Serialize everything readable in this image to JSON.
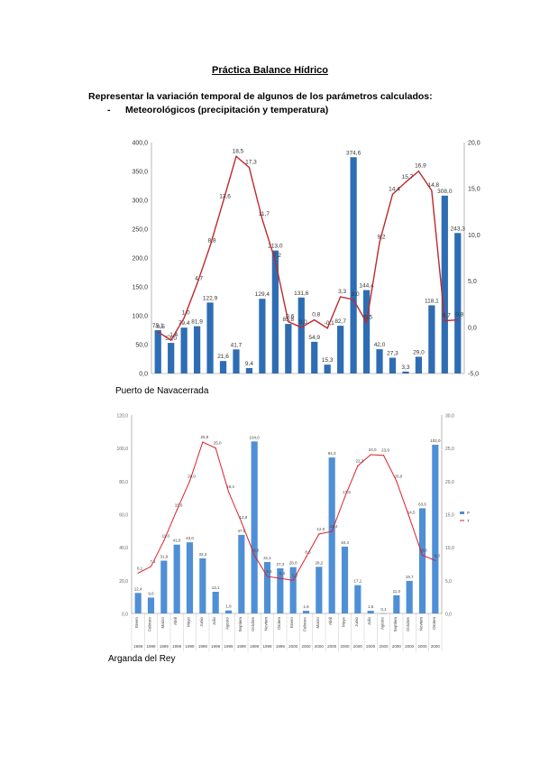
{
  "document": {
    "title": "Práctica Balance Hídrico",
    "intro": "Representar la variación temporal de algunos de los parámetros calculados:",
    "bullet_dash": "-",
    "bullet_text": "Meteorológicos (precipitación y temperatura)",
    "location_1": "Puerto de Navacerrada",
    "location_2": "Arganda del Rey"
  },
  "chart_data": [
    {
      "type": "bar",
      "title": "",
      "y_left_lim": [
        0,
        400
      ],
      "y_left_ticks": [
        "0,0",
        "50,0",
        "100,0",
        "150,0",
        "200,0",
        "250,0",
        "300,0",
        "350,0",
        "400,0"
      ],
      "y_right_lim": [
        -5,
        20
      ],
      "y_right_ticks": [
        "-5,0",
        "0,0",
        "5,0",
        "10,0",
        "15,0",
        "20,0"
      ],
      "colors": {
        "bar": "#2E6DB4",
        "line": "#C0282D"
      },
      "series": [
        {
          "name": "",
          "kind": "bar",
          "values": [
            75.1,
            53.0,
            79.4,
            81.9,
            122.9,
            21.6,
            41.7,
            9.4,
            129.4,
            213.0,
            85.8,
            131.6,
            54.9,
            15.3,
            82.7,
            374.6,
            144.4,
            42.0,
            27.3,
            3.3,
            29.0,
            118.1,
            308.0,
            243.3
          ],
          "labels": [
            "75,1",
            "53,0",
            "79,4",
            "81,9",
            "122,9",
            "21,6",
            "41,7",
            "9,4",
            "129,4",
            "213,0",
            "85,8",
            "131,6",
            "54,9",
            "15,3",
            "82,7",
            "374,6",
            "144,4",
            "42,0",
            "27,3",
            "3,3",
            "29,0",
            "118,1",
            "308,0",
            "243,3"
          ]
        },
        {
          "name": "",
          "kind": "line",
          "values": [
            -0.5,
            -1.4,
            1.0,
            4.7,
            8.8,
            13.6,
            18.5,
            17.3,
            11.7,
            7.2,
            0.6,
            0.0,
            0.8,
            -0.1,
            3.3,
            3.0,
            0.5,
            9.2,
            14.4,
            15.7,
            16.9,
            14.8,
            0.7,
            0.8
          ],
          "labels": [
            "-0,5",
            "-1,4",
            "1,0",
            "4,7",
            "8,8",
            "13,6",
            "18,5",
            "17,3",
            "11,7",
            "7,2",
            "0,6",
            "0,0",
            "0,8",
            "-0,1",
            "3,3",
            "3,0",
            "0,5",
            "9,2",
            "14,4",
            "15,7",
            "16,9",
            "14,8",
            "0,7",
            "0,8"
          ]
        }
      ]
    },
    {
      "type": "bar",
      "title": "",
      "y_left_lim": [
        0,
        120
      ],
      "y_left_ticks": [
        "0,0",
        "20,0",
        "40,0",
        "60,0",
        "80,0",
        "100,0",
        "120,0"
      ],
      "y_right_lim": [
        0,
        30
      ],
      "y_right_ticks": [
        "0,0",
        "5,0",
        "10,0",
        "15,0",
        "20,0",
        "25,0",
        "30,0"
      ],
      "categories": [
        "Enero",
        "Febrero",
        "Marzo",
        "Abril",
        "Mayo",
        "Junio",
        "Julio",
        "Agosto",
        "Septiem",
        "Octubre",
        "Noviem",
        "Diciem",
        "Enero",
        "Febrero",
        "Marzo",
        "Abril",
        "Mayo",
        "Junio",
        "Julio",
        "Agosto",
        "Septiem",
        "Octubre",
        "Noviem",
        "Diciem"
      ],
      "years": [
        "1999",
        "1999",
        "1999",
        "1999",
        "1999",
        "1999",
        "1999",
        "1999",
        "1999",
        "1999",
        "1999",
        "1999",
        "2000",
        "2000",
        "2000",
        "2000",
        "2000",
        "2000",
        "2000",
        "2000",
        "2000",
        "2000",
        "2000",
        "2000"
      ],
      "legend": {
        "position": "right",
        "entries": [
          "P",
          "T"
        ]
      },
      "colors": {
        "bar": "#4F8FD6",
        "line": "#E0202A"
      },
      "series": [
        {
          "name": "P",
          "kind": "bar",
          "values": [
            12.4,
            9.6,
            31.9,
            41.6,
            43.0,
            33.3,
            13.1,
            1.8,
            47.5,
            104.0,
            31.1,
            27.3,
            28.0,
            1.6,
            28.2,
            94.3,
            40.4,
            17.1,
            1.6,
            0.1,
            11.0,
            19.7,
            63.6,
            102.0
          ],
          "labels": [
            "12,4",
            "9,6",
            "31,9",
            "41,6",
            "43,0",
            "33,3",
            "13,1",
            "1,8",
            "47,5",
            "104,0",
            "31,1",
            "27,3",
            "28,0",
            "1,6",
            "28,2",
            "94,3",
            "40,4",
            "17,1",
            "1,6",
            "0,1",
            "11,0",
            "19,7",
            "63,6",
            "102,0"
          ]
        },
        {
          "name": "T",
          "kind": "line",
          "values": [
            6.1,
            7.1,
            11.0,
            15.6,
            20.0,
            25.9,
            25.0,
            18.4,
            13.8,
            8.8,
            5.6,
            5.3,
            5.0,
            8.5,
            12.0,
            12.4,
            17.6,
            22.3,
            24.0,
            23.9,
            20.0,
            14.5,
            8.8,
            8.0
          ],
          "labels": [
            "6,1",
            "7,1",
            "11,0",
            "15,6",
            "20,0",
            "25,9",
            "25,0",
            "18,4",
            "13,8",
            "8,8",
            "5,6",
            "5,3",
            "5,0",
            "8,5",
            "12,0",
            "12,4",
            "17,6",
            "22,3",
            "24,0",
            "23,9",
            "20,0",
            "14,5",
            "8,8",
            "8,0"
          ]
        }
      ]
    }
  ]
}
